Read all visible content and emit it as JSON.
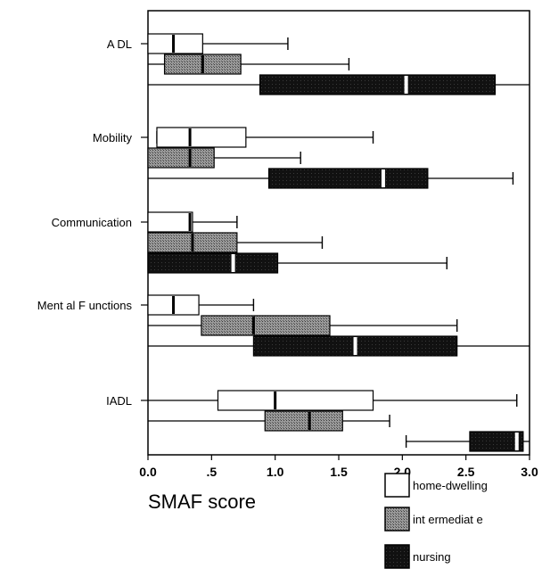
{
  "chart_data": {
    "type": "boxplot",
    "orientation": "horizontal",
    "xlabel": "SMAF score",
    "xlim": [
      0,
      3
    ],
    "x_ticks": [
      "0.0",
      ".5",
      "1.0",
      "1.5",
      "2.0",
      "2.5",
      "3.0"
    ],
    "x_tick_values": [
      0,
      0.5,
      1,
      1.5,
      2,
      2.5,
      3
    ],
    "categories": [
      "ADL",
      "Mobility",
      "Communication",
      "Mental Functions",
      "IADL"
    ],
    "category_labels": [
      "A DL",
      "Mobility",
      "Communication",
      "Ment al F unctions",
      "IADL"
    ],
    "legend": {
      "placement": "bottom-right",
      "entries": [
        "home-dwelling",
        "intermediate",
        "nursing"
      ],
      "entry_labels": [
        "home-dwelling",
        "int ermediat e",
        "nursing"
      ]
    },
    "series": [
      {
        "name": "home-dwelling",
        "fill": "#ffffff",
        "boxes": [
          {
            "min": 0.0,
            "q1": 0.0,
            "median": 0.2,
            "q3": 0.43,
            "max": 1.1
          },
          {
            "min": 0.07,
            "q1": 0.07,
            "median": 0.33,
            "q3": 0.77,
            "max": 1.77
          },
          {
            "min": 0.0,
            "q1": 0.0,
            "median": 0.33,
            "q3": 0.35,
            "max": 0.7
          },
          {
            "min": 0.0,
            "q1": 0.0,
            "median": 0.2,
            "q3": 0.4,
            "max": 0.83
          },
          {
            "min": 0.0,
            "q1": 0.55,
            "median": 1.0,
            "q3": 1.77,
            "max": 2.9
          }
        ]
      },
      {
        "name": "intermediate",
        "fill": "#8c8c8c",
        "boxes": [
          {
            "min": 0.0,
            "q1": 0.13,
            "median": 0.43,
            "q3": 0.73,
            "max": 1.58
          },
          {
            "min": 0.0,
            "q1": 0.0,
            "median": 0.33,
            "q3": 0.52,
            "max": 1.2
          },
          {
            "min": 0.0,
            "q1": 0.0,
            "median": 0.35,
            "q3": 0.7,
            "max": 1.37
          },
          {
            "min": 0.0,
            "q1": 0.42,
            "median": 0.83,
            "q3": 1.43,
            "max": 2.43
          },
          {
            "min": 0.0,
            "q1": 0.92,
            "median": 1.27,
            "q3": 1.53,
            "max": 1.9
          }
        ]
      },
      {
        "name": "nursing",
        "fill": "#141414",
        "boxes": [
          {
            "min": 0.0,
            "q1": 0.88,
            "median": 2.03,
            "q3": 2.73,
            "max": 3.0
          },
          {
            "min": 0.0,
            "q1": 0.95,
            "median": 1.85,
            "q3": 2.2,
            "max": 2.87
          },
          {
            "min": 0.0,
            "q1": 0.0,
            "median": 0.67,
            "q3": 1.02,
            "max": 2.35
          },
          {
            "min": 0.0,
            "q1": 0.83,
            "median": 1.63,
            "q3": 2.43,
            "max": 3.0
          },
          {
            "min": 2.03,
            "q1": 2.53,
            "median": 2.9,
            "q3": 2.95,
            "max": 3.0
          }
        ]
      }
    ]
  }
}
